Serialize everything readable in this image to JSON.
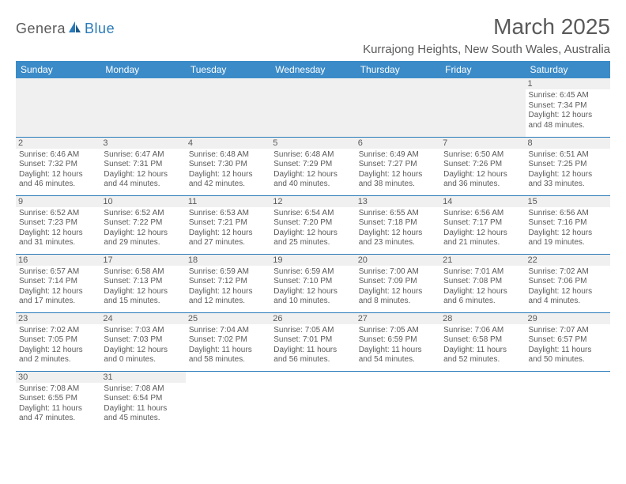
{
  "brand": {
    "part1": "Genera",
    "part2": "Blue"
  },
  "title": "March 2025",
  "location": "Kurrajong Heights, New South Wales, Australia",
  "colors": {
    "header_bg": "#3b8bc8",
    "header_text": "#ffffff",
    "border": "#2a7ab8",
    "text": "#5a5a5a",
    "datenum_bg": "#f0f0f0",
    "page_bg": "#ffffff"
  },
  "typography": {
    "title_fontsize": 28,
    "location_fontsize": 15,
    "dayhead_fontsize": 12,
    "cell_fontsize": 10,
    "datenum_fontsize": 11
  },
  "day_names": [
    "Sunday",
    "Monday",
    "Tuesday",
    "Wednesday",
    "Thursday",
    "Friday",
    "Saturday"
  ],
  "weeks": [
    [
      null,
      null,
      null,
      null,
      null,
      null,
      {
        "d": "1",
        "sr": "Sunrise: 6:45 AM",
        "ss": "Sunset: 7:34 PM",
        "dl1": "Daylight: 12 hours",
        "dl2": "and 48 minutes."
      }
    ],
    [
      {
        "d": "2",
        "sr": "Sunrise: 6:46 AM",
        "ss": "Sunset: 7:32 PM",
        "dl1": "Daylight: 12 hours",
        "dl2": "and 46 minutes."
      },
      {
        "d": "3",
        "sr": "Sunrise: 6:47 AM",
        "ss": "Sunset: 7:31 PM",
        "dl1": "Daylight: 12 hours",
        "dl2": "and 44 minutes."
      },
      {
        "d": "4",
        "sr": "Sunrise: 6:48 AM",
        "ss": "Sunset: 7:30 PM",
        "dl1": "Daylight: 12 hours",
        "dl2": "and 42 minutes."
      },
      {
        "d": "5",
        "sr": "Sunrise: 6:48 AM",
        "ss": "Sunset: 7:29 PM",
        "dl1": "Daylight: 12 hours",
        "dl2": "and 40 minutes."
      },
      {
        "d": "6",
        "sr": "Sunrise: 6:49 AM",
        "ss": "Sunset: 7:27 PM",
        "dl1": "Daylight: 12 hours",
        "dl2": "and 38 minutes."
      },
      {
        "d": "7",
        "sr": "Sunrise: 6:50 AM",
        "ss": "Sunset: 7:26 PM",
        "dl1": "Daylight: 12 hours",
        "dl2": "and 36 minutes."
      },
      {
        "d": "8",
        "sr": "Sunrise: 6:51 AM",
        "ss": "Sunset: 7:25 PM",
        "dl1": "Daylight: 12 hours",
        "dl2": "and 33 minutes."
      }
    ],
    [
      {
        "d": "9",
        "sr": "Sunrise: 6:52 AM",
        "ss": "Sunset: 7:23 PM",
        "dl1": "Daylight: 12 hours",
        "dl2": "and 31 minutes."
      },
      {
        "d": "10",
        "sr": "Sunrise: 6:52 AM",
        "ss": "Sunset: 7:22 PM",
        "dl1": "Daylight: 12 hours",
        "dl2": "and 29 minutes."
      },
      {
        "d": "11",
        "sr": "Sunrise: 6:53 AM",
        "ss": "Sunset: 7:21 PM",
        "dl1": "Daylight: 12 hours",
        "dl2": "and 27 minutes."
      },
      {
        "d": "12",
        "sr": "Sunrise: 6:54 AM",
        "ss": "Sunset: 7:20 PM",
        "dl1": "Daylight: 12 hours",
        "dl2": "and 25 minutes."
      },
      {
        "d": "13",
        "sr": "Sunrise: 6:55 AM",
        "ss": "Sunset: 7:18 PM",
        "dl1": "Daylight: 12 hours",
        "dl2": "and 23 minutes."
      },
      {
        "d": "14",
        "sr": "Sunrise: 6:56 AM",
        "ss": "Sunset: 7:17 PM",
        "dl1": "Daylight: 12 hours",
        "dl2": "and 21 minutes."
      },
      {
        "d": "15",
        "sr": "Sunrise: 6:56 AM",
        "ss": "Sunset: 7:16 PM",
        "dl1": "Daylight: 12 hours",
        "dl2": "and 19 minutes."
      }
    ],
    [
      {
        "d": "16",
        "sr": "Sunrise: 6:57 AM",
        "ss": "Sunset: 7:14 PM",
        "dl1": "Daylight: 12 hours",
        "dl2": "and 17 minutes."
      },
      {
        "d": "17",
        "sr": "Sunrise: 6:58 AM",
        "ss": "Sunset: 7:13 PM",
        "dl1": "Daylight: 12 hours",
        "dl2": "and 15 minutes."
      },
      {
        "d": "18",
        "sr": "Sunrise: 6:59 AM",
        "ss": "Sunset: 7:12 PM",
        "dl1": "Daylight: 12 hours",
        "dl2": "and 12 minutes."
      },
      {
        "d": "19",
        "sr": "Sunrise: 6:59 AM",
        "ss": "Sunset: 7:10 PM",
        "dl1": "Daylight: 12 hours",
        "dl2": "and 10 minutes."
      },
      {
        "d": "20",
        "sr": "Sunrise: 7:00 AM",
        "ss": "Sunset: 7:09 PM",
        "dl1": "Daylight: 12 hours",
        "dl2": "and 8 minutes."
      },
      {
        "d": "21",
        "sr": "Sunrise: 7:01 AM",
        "ss": "Sunset: 7:08 PM",
        "dl1": "Daylight: 12 hours",
        "dl2": "and 6 minutes."
      },
      {
        "d": "22",
        "sr": "Sunrise: 7:02 AM",
        "ss": "Sunset: 7:06 PM",
        "dl1": "Daylight: 12 hours",
        "dl2": "and 4 minutes."
      }
    ],
    [
      {
        "d": "23",
        "sr": "Sunrise: 7:02 AM",
        "ss": "Sunset: 7:05 PM",
        "dl1": "Daylight: 12 hours",
        "dl2": "and 2 minutes."
      },
      {
        "d": "24",
        "sr": "Sunrise: 7:03 AM",
        "ss": "Sunset: 7:03 PM",
        "dl1": "Daylight: 12 hours",
        "dl2": "and 0 minutes."
      },
      {
        "d": "25",
        "sr": "Sunrise: 7:04 AM",
        "ss": "Sunset: 7:02 PM",
        "dl1": "Daylight: 11 hours",
        "dl2": "and 58 minutes."
      },
      {
        "d": "26",
        "sr": "Sunrise: 7:05 AM",
        "ss": "Sunset: 7:01 PM",
        "dl1": "Daylight: 11 hours",
        "dl2": "and 56 minutes."
      },
      {
        "d": "27",
        "sr": "Sunrise: 7:05 AM",
        "ss": "Sunset: 6:59 PM",
        "dl1": "Daylight: 11 hours",
        "dl2": "and 54 minutes."
      },
      {
        "d": "28",
        "sr": "Sunrise: 7:06 AM",
        "ss": "Sunset: 6:58 PM",
        "dl1": "Daylight: 11 hours",
        "dl2": "and 52 minutes."
      },
      {
        "d": "29",
        "sr": "Sunrise: 7:07 AM",
        "ss": "Sunset: 6:57 PM",
        "dl1": "Daylight: 11 hours",
        "dl2": "and 50 minutes."
      }
    ],
    [
      {
        "d": "30",
        "sr": "Sunrise: 7:08 AM",
        "ss": "Sunset: 6:55 PM",
        "dl1": "Daylight: 11 hours",
        "dl2": "and 47 minutes."
      },
      {
        "d": "31",
        "sr": "Sunrise: 7:08 AM",
        "ss": "Sunset: 6:54 PM",
        "dl1": "Daylight: 11 hours",
        "dl2": "and 45 minutes."
      },
      null,
      null,
      null,
      null,
      null
    ]
  ]
}
